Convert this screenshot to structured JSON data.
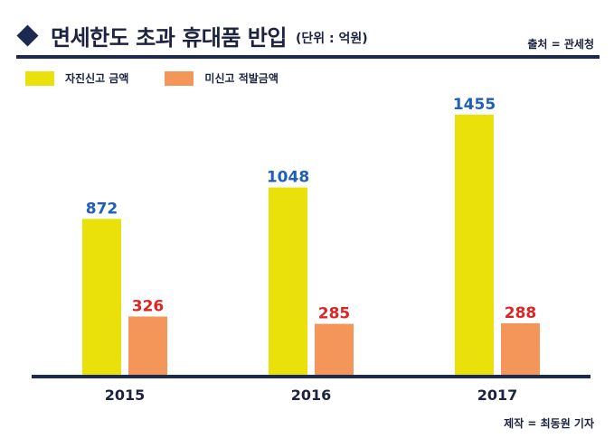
{
  "header": {
    "title": "면세한도 초과 휴대품 반입",
    "unit": "(단위 : 억원)",
    "source": "출처 = 관세청"
  },
  "footer": {
    "credit": "제작 = 최동원 기자"
  },
  "colors": {
    "declared": "#ebe10a",
    "undeclared": "#f4955a",
    "declared_label": "#1f5fb8",
    "undeclared_label": "#e02424",
    "axis": "#1c2a52"
  },
  "chart_data": {
    "type": "bar",
    "title": "면세한도 초과 휴대품 반입",
    "categories": [
      "2015",
      "2016",
      "2017"
    ],
    "series": [
      {
        "name": "자진신고 금액",
        "values": [
          872,
          1048,
          1455
        ]
      },
      {
        "name": "미신고 적발금액",
        "values": [
          326,
          285,
          288
        ]
      }
    ],
    "ylim": [
      0,
      1600
    ],
    "grid": false,
    "legend": "top-left",
    "data_labels": true
  }
}
